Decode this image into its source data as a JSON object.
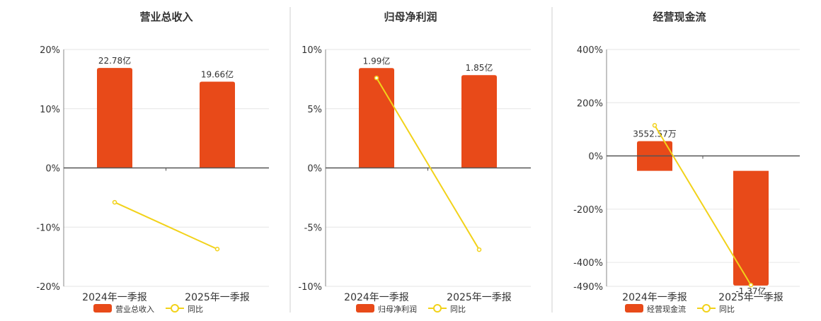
{
  "colors": {
    "bar": "#e84a19",
    "line": "#f2d21a",
    "grid": "#e6e6e6",
    "axis": "#333333",
    "divider": "#cfcfcf",
    "text": "#333333"
  },
  "legend": {
    "yoy_label": "同比"
  },
  "chart_data": [
    {
      "type": "bar",
      "title": "营业总收入",
      "categories": [
        "2024年一季报",
        "2025年一季报"
      ],
      "series": [
        {
          "name": "营业总收入",
          "values": [
            22.78,
            19.66
          ],
          "labels": [
            "22.78亿",
            "19.66亿"
          ]
        },
        {
          "name": "同比",
          "type": "line",
          "values": [
            -5.8,
            -13.7
          ]
        }
      ],
      "bar_scale": [
        0,
        27
      ],
      "yticks": [
        20,
        10,
        0,
        -10,
        -20
      ],
      "ytick_labels": [
        "20%",
        "10%",
        "0%",
        "-10%",
        "-20%"
      ],
      "ylim": [
        -20,
        20
      ]
    },
    {
      "type": "bar",
      "title": "归母净利润",
      "categories": [
        "2024年一季报",
        "2025年一季报"
      ],
      "series": [
        {
          "name": "归母净利润",
          "values": [
            1.99,
            1.85
          ],
          "labels": [
            "1.99亿",
            "1.85亿"
          ]
        },
        {
          "name": "同比",
          "type": "line",
          "values": [
            7.6,
            -6.9
          ]
        }
      ],
      "bar_scale": [
        0,
        2.36
      ],
      "yticks": [
        10,
        5,
        0,
        -5,
        -10
      ],
      "ytick_labels": [
        "10%",
        "5%",
        "0%",
        "-5%",
        "-10%"
      ],
      "ylim": [
        -10,
        10
      ]
    },
    {
      "type": "bar",
      "title": "经营现金流",
      "categories": [
        "2024年一季报",
        "2025年一季报"
      ],
      "series": [
        {
          "name": "经营现金流",
          "values": [
            0.3553,
            -1.37
          ],
          "labels": [
            "3552.57万",
            "-1.37亿"
          ]
        },
        {
          "name": "同比",
          "type": "line",
          "values": [
            115,
            -485
          ]
        }
      ],
      "bar_scale": [
        -1.37,
        1.37
      ],
      "bar_axis_range": [
        -1.38,
        1.45
      ],
      "yticks": [
        400,
        200,
        0,
        -200,
        -400,
        -490
      ],
      "ytick_labels": [
        "400%",
        "200%",
        "0%",
        "-200%",
        "-400%",
        "-490%"
      ],
      "ylim": [
        -490,
        400
      ]
    }
  ]
}
